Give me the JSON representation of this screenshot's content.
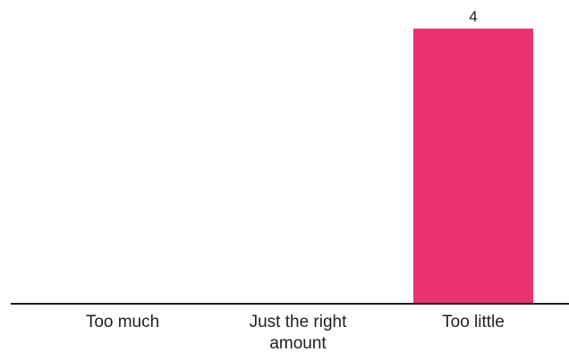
{
  "chart_data": {
    "type": "bar",
    "categories": [
      [
        "Too much"
      ],
      [
        "Just the right",
        "amount"
      ],
      [
        "Too little"
      ]
    ],
    "values": [
      0,
      0,
      4
    ],
    "data_labels": [
      "",
      "",
      "4"
    ],
    "ylim": [
      0,
      4
    ],
    "grid": false,
    "colors": {
      "bar": "#E8336F",
      "axis": "#1a1a1a",
      "text": "#1f1f1f"
    }
  }
}
